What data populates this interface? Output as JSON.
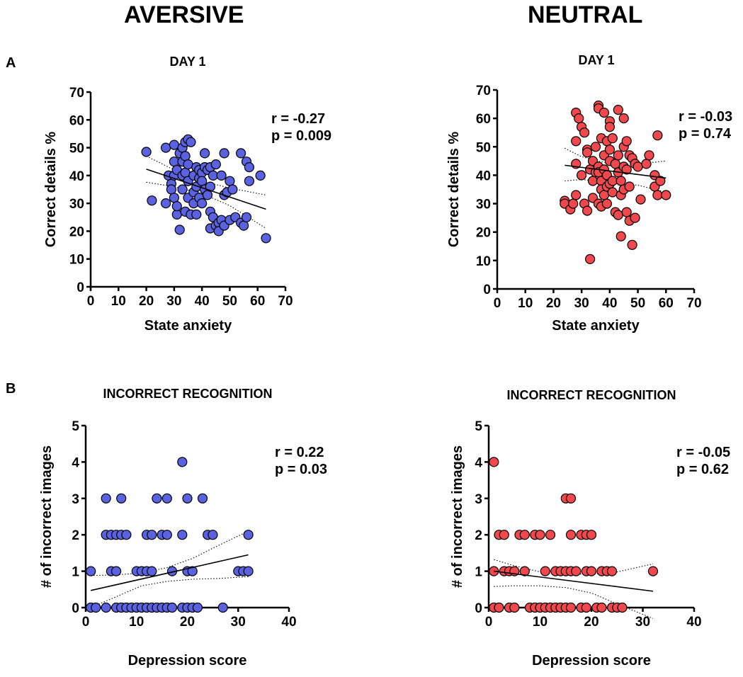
{
  "column_titles": {
    "left": "AVERSIVE",
    "right": "NEUTRAL"
  },
  "panel_letters": {
    "a": "A",
    "b": "B"
  },
  "colors": {
    "aversive": "#5b62e0",
    "neutral": "#f0484d",
    "marker_edge": "#000000"
  },
  "chart_data": [
    {
      "type": "scatter",
      "title": "DAY 1",
      "xlabel": "State anxiety",
      "ylabel": "Correct details %",
      "xlim": [
        0,
        70
      ],
      "ylim": [
        0,
        70
      ],
      "xticks": [
        0,
        10,
        20,
        30,
        40,
        50,
        60,
        70
      ],
      "yticks": [
        0,
        10,
        20,
        30,
        40,
        50,
        60,
        70
      ],
      "annotation": [
        "r = -0.27",
        "p = 0.009"
      ],
      "color": "#5b62e0",
      "regression": {
        "x": [
          20,
          63
        ],
        "y": [
          42.3,
          27.9
        ]
      },
      "ci_lower": {
        "x": [
          20,
          30,
          40,
          50,
          63
        ],
        "y": [
          37.6,
          36.0,
          33.5,
          29.2,
          21.0
        ]
      },
      "ci_upper": {
        "x": [
          20,
          30,
          40,
          50,
          63
        ],
        "y": [
          47.0,
          42.0,
          38.0,
          35.5,
          33.0
        ]
      },
      "points": [
        [
          20,
          48.5
        ],
        [
          22,
          31
        ],
        [
          27,
          50
        ],
        [
          27,
          30
        ],
        [
          28,
          40
        ],
        [
          29,
          37
        ],
        [
          29,
          35
        ],
        [
          30,
          51
        ],
        [
          30,
          45
        ],
        [
          30,
          40
        ],
        [
          30,
          32
        ],
        [
          31,
          26
        ],
        [
          31,
          29
        ],
        [
          31,
          42
        ],
        [
          32,
          48
        ],
        [
          32,
          20.5
        ],
        [
          33,
          50
        ],
        [
          33,
          45
        ],
        [
          33,
          40
        ],
        [
          33,
          35
        ],
        [
          34,
          52
        ],
        [
          34,
          47
        ],
        [
          34,
          41
        ],
        [
          34,
          27
        ],
        [
          35,
          53
        ],
        [
          35,
          44
        ],
        [
          35,
          38
        ],
        [
          35,
          32
        ],
        [
          36,
          52
        ],
        [
          36,
          26
        ],
        [
          37,
          40
        ],
        [
          37,
          34
        ],
        [
          37,
          30
        ],
        [
          38,
          43
        ],
        [
          38,
          36
        ],
        [
          38,
          26
        ],
        [
          39,
          42
        ],
        [
          39,
          32
        ],
        [
          39,
          39
        ],
        [
          40,
          41
        ],
        [
          40,
          38
        ],
        [
          40,
          30
        ],
        [
          41,
          48
        ],
        [
          41,
          43
        ],
        [
          41,
          35
        ],
        [
          42,
          42
        ],
        [
          42,
          33
        ],
        [
          43,
          43
        ],
        [
          43,
          36
        ],
        [
          43,
          27
        ],
        [
          43,
          21
        ],
        [
          44,
          25
        ],
        [
          44,
          40
        ],
        [
          45,
          44
        ],
        [
          45,
          22
        ],
        [
          46,
          23
        ],
        [
          46,
          20
        ],
        [
          47,
          24
        ],
        [
          47,
          40
        ],
        [
          48,
          48
        ],
        [
          48,
          33
        ],
        [
          48,
          22
        ],
        [
          49,
          34
        ],
        [
          50,
          38
        ],
        [
          50,
          24
        ],
        [
          51,
          35
        ],
        [
          52,
          25
        ],
        [
          54,
          48
        ],
        [
          54,
          23
        ],
        [
          55,
          22
        ],
        [
          56,
          45
        ],
        [
          56,
          25
        ],
        [
          57,
          43
        ],
        [
          57,
          38
        ],
        [
          61,
          40
        ],
        [
          63,
          17.5
        ]
      ]
    },
    {
      "type": "scatter",
      "title": "DAY 1",
      "xlabel": "State anxiety",
      "ylabel": "Correct details %",
      "xlim": [
        0,
        70
      ],
      "ylim": [
        0,
        70
      ],
      "xticks": [
        0,
        10,
        20,
        30,
        40,
        50,
        60,
        70
      ],
      "yticks": [
        0,
        10,
        20,
        30,
        40,
        50,
        60,
        70
      ],
      "annotation": [
        "r = -0.03",
        "p = 0.74"
      ],
      "color": "#f0484d",
      "regression": {
        "x": [
          24,
          60
        ],
        "y": [
          43.5,
          39.0
        ]
      },
      "ci_lower": {
        "x": [
          24,
          30,
          40,
          50,
          60
        ],
        "y": [
          38.0,
          38.5,
          37.5,
          36.5,
          34.0
        ]
      },
      "ci_upper": {
        "x": [
          24,
          30,
          40,
          50,
          60
        ],
        "y": [
          49.5,
          46.5,
          44.0,
          44.0,
          45.0
        ]
      },
      "points": [
        [
          24,
          31
        ],
        [
          24,
          30
        ],
        [
          26,
          28
        ],
        [
          27,
          30
        ],
        [
          28,
          62
        ],
        [
          28,
          52
        ],
        [
          28,
          44
        ],
        [
          28,
          33
        ],
        [
          29,
          60
        ],
        [
          30,
          57
        ],
        [
          30,
          40
        ],
        [
          31,
          55
        ],
        [
          31,
          30
        ],
        [
          32,
          49
        ],
        [
          32,
          27.5
        ],
        [
          32,
          48
        ],
        [
          33,
          42
        ],
        [
          33,
          10.5
        ],
        [
          34,
          45
        ],
        [
          34,
          38
        ],
        [
          34,
          32
        ],
        [
          35,
          41
        ],
        [
          35,
          50
        ],
        [
          36,
          64.5
        ],
        [
          36,
          63.5
        ],
        [
          36,
          43
        ],
        [
          36,
          41
        ],
        [
          36,
          30
        ],
        [
          37,
          53
        ],
        [
          37,
          38
        ],
        [
          37,
          35
        ],
        [
          37,
          29
        ],
        [
          38,
          62
        ],
        [
          38,
          47
        ],
        [
          38,
          42
        ],
        [
          38,
          33
        ],
        [
          39,
          52
        ],
        [
          39,
          40
        ],
        [
          39,
          36
        ],
        [
          39,
          30
        ],
        [
          40,
          59
        ],
        [
          40,
          57
        ],
        [
          40,
          49
        ],
        [
          40,
          45
        ],
        [
          40,
          37
        ],
        [
          41,
          53
        ],
        [
          41,
          38
        ],
        [
          41,
          34
        ],
        [
          42,
          27
        ],
        [
          42,
          44
        ],
        [
          43,
          63
        ],
        [
          43,
          41
        ],
        [
          43,
          26
        ],
        [
          43,
          47
        ],
        [
          44,
          38
        ],
        [
          44,
          33
        ],
        [
          44,
          18.5
        ],
        [
          45,
          60
        ],
        [
          45,
          50
        ],
        [
          45,
          43
        ],
        [
          45,
          35
        ],
        [
          46,
          52
        ],
        [
          46,
          42
        ],
        [
          46,
          27
        ],
        [
          47,
          47
        ],
        [
          47,
          36
        ],
        [
          47,
          24
        ],
        [
          48,
          46
        ],
        [
          48,
          15.5
        ],
        [
          49,
          25
        ],
        [
          49,
          44
        ],
        [
          50,
          43
        ],
        [
          51,
          31.5
        ],
        [
          53,
          44
        ],
        [
          54,
          47
        ],
        [
          56,
          40
        ],
        [
          56,
          36
        ],
        [
          57,
          54
        ],
        [
          57,
          33
        ],
        [
          58,
          38
        ],
        [
          60,
          33
        ]
      ]
    },
    {
      "type": "scatter",
      "title": "INCORRECT RECOGNITION",
      "xlabel": "Depression score",
      "ylabel": "# of incorrect images",
      "xlim": [
        0,
        40
      ],
      "ylim": [
        0,
        5
      ],
      "xticks": [
        0,
        10,
        20,
        30,
        40
      ],
      "yticks": [
        0,
        1,
        2,
        3,
        4,
        5
      ],
      "annotation": [
        "r = 0.22",
        "p = 0.03"
      ],
      "color": "#5b62e0",
      "regression": {
        "x": [
          1,
          32
        ],
        "y": [
          0.47,
          1.45
        ]
      },
      "ci_lower": {
        "x": [
          1,
          6,
          11,
          16,
          21,
          26,
          32
        ],
        "y": [
          0.0,
          0.3,
          0.6,
          0.72,
          0.78,
          0.8,
          0.85
        ]
      },
      "ci_upper": {
        "x": [
          1,
          6,
          11,
          16,
          21,
          26,
          32
        ],
        "y": [
          0.88,
          0.9,
          0.95,
          1.1,
          1.35,
          1.7,
          2.1
        ]
      },
      "points": [
        [
          1,
          0
        ],
        [
          1,
          1
        ],
        [
          2,
          0
        ],
        [
          4,
          0
        ],
        [
          4,
          2
        ],
        [
          4,
          3
        ],
        [
          5,
          2
        ],
        [
          5,
          1
        ],
        [
          6,
          2
        ],
        [
          6,
          1
        ],
        [
          6,
          0
        ],
        [
          7,
          2
        ],
        [
          7,
          0
        ],
        [
          7,
          3
        ],
        [
          8,
          2
        ],
        [
          8,
          0
        ],
        [
          9,
          0
        ],
        [
          10,
          1
        ],
        [
          10,
          0
        ],
        [
          11,
          1
        ],
        [
          11,
          0
        ],
        [
          12,
          2
        ],
        [
          12,
          0
        ],
        [
          12,
          1
        ],
        [
          13,
          2
        ],
        [
          13,
          1
        ],
        [
          13,
          0
        ],
        [
          14,
          3
        ],
        [
          14,
          0
        ],
        [
          15,
          2
        ],
        [
          15,
          0
        ],
        [
          16,
          2
        ],
        [
          16,
          3
        ],
        [
          16,
          0
        ],
        [
          17,
          0
        ],
        [
          17,
          1
        ],
        [
          19,
          4
        ],
        [
          19,
          2
        ],
        [
          19,
          0
        ],
        [
          20,
          1
        ],
        [
          20,
          3
        ],
        [
          20,
          0
        ],
        [
          21,
          1
        ],
        [
          21,
          0
        ],
        [
          22,
          0
        ],
        [
          23,
          3
        ],
        [
          24,
          2
        ],
        [
          25,
          2
        ],
        [
          27,
          0
        ],
        [
          30,
          1
        ],
        [
          31,
          1
        ],
        [
          32,
          2
        ],
        [
          32,
          1
        ]
      ]
    },
    {
      "type": "scatter",
      "title": "INCORRECT RECOGNITION",
      "xlabel": "Depression score",
      "ylabel": "# of incorrect images",
      "xlim": [
        0,
        40
      ],
      "ylim": [
        0,
        5
      ],
      "xticks": [
        0,
        10,
        20,
        30,
        40
      ],
      "yticks": [
        0,
        1,
        2,
        3,
        4,
        5
      ],
      "annotation": [
        "r = -0.05",
        "p = 0.62"
      ],
      "color": "#f0484d",
      "regression": {
        "x": [
          1,
          32
        ],
        "y": [
          1.0,
          0.45
        ]
      },
      "ci_lower": {
        "x": [
          1,
          5,
          10,
          15,
          20,
          25,
          32
        ],
        "y": [
          0.58,
          0.6,
          0.6,
          0.55,
          0.4,
          0.1,
          -0.3
        ]
      },
      "ci_upper": {
        "x": [
          1,
          5,
          10,
          15,
          20,
          25,
          32
        ],
        "y": [
          1.32,
          1.15,
          0.98,
          0.92,
          0.92,
          0.98,
          1.2
        ]
      },
      "points": [
        [
          1,
          4
        ],
        [
          1,
          0
        ],
        [
          1,
          1
        ],
        [
          2,
          2
        ],
        [
          2,
          0
        ],
        [
          3,
          2
        ],
        [
          3,
          1
        ],
        [
          4,
          1
        ],
        [
          4,
          0
        ],
        [
          5,
          1
        ],
        [
          5,
          0
        ],
        [
          6,
          2
        ],
        [
          7,
          2
        ],
        [
          7,
          1
        ],
        [
          8,
          0
        ],
        [
          9,
          2
        ],
        [
          9,
          0
        ],
        [
          10,
          2
        ],
        [
          10,
          0
        ],
        [
          11,
          1
        ],
        [
          11,
          0
        ],
        [
          12,
          2
        ],
        [
          12,
          0
        ],
        [
          13,
          1
        ],
        [
          13,
          0
        ],
        [
          14,
          1
        ],
        [
          14,
          0
        ],
        [
          15,
          3
        ],
        [
          15,
          1
        ],
        [
          15,
          0
        ],
        [
          16,
          3
        ],
        [
          16,
          2
        ],
        [
          16,
          1
        ],
        [
          16,
          0
        ],
        [
          17,
          1
        ],
        [
          18,
          2
        ],
        [
          18,
          0
        ],
        [
          19,
          2
        ],
        [
          19,
          1
        ],
        [
          19,
          0
        ],
        [
          20,
          2
        ],
        [
          20,
          1
        ],
        [
          21,
          0
        ],
        [
          22,
          1
        ],
        [
          22,
          0
        ],
        [
          23,
          1
        ],
        [
          24,
          1
        ],
        [
          24,
          0
        ],
        [
          25,
          0
        ],
        [
          26,
          0
        ],
        [
          32,
          1
        ]
      ]
    }
  ]
}
